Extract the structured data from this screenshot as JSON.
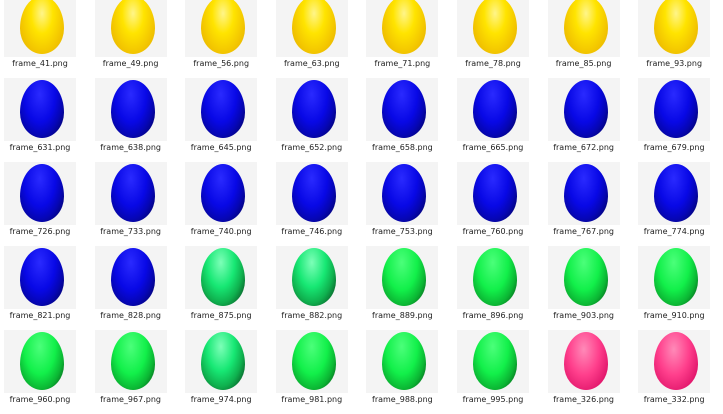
{
  "files": [
    {
      "name": "frame_41.png",
      "color": "yellow"
    },
    {
      "name": "frame_49.png",
      "color": "yellow"
    },
    {
      "name": "frame_56.png",
      "color": "yellow"
    },
    {
      "name": "frame_63.png",
      "color": "yellow"
    },
    {
      "name": "frame_71.png",
      "color": "yellow"
    },
    {
      "name": "frame_78.png",
      "color": "yellow"
    },
    {
      "name": "frame_85.png",
      "color": "yellow"
    },
    {
      "name": "frame_93.png",
      "color": "yellow"
    },
    {
      "name": "frame_631.png",
      "color": "blue"
    },
    {
      "name": "frame_638.png",
      "color": "blue"
    },
    {
      "name": "frame_645.png",
      "color": "blue"
    },
    {
      "name": "frame_652.png",
      "color": "blue"
    },
    {
      "name": "frame_658.png",
      "color": "blue"
    },
    {
      "name": "frame_665.png",
      "color": "blue"
    },
    {
      "name": "frame_672.png",
      "color": "blue"
    },
    {
      "name": "frame_679.png",
      "color": "blue"
    },
    {
      "name": "frame_726.png",
      "color": "blue"
    },
    {
      "name": "frame_733.png",
      "color": "blue"
    },
    {
      "name": "frame_740.png",
      "color": "blue"
    },
    {
      "name": "frame_746.png",
      "color": "blue"
    },
    {
      "name": "frame_753.png",
      "color": "blue"
    },
    {
      "name": "frame_760.png",
      "color": "blue"
    },
    {
      "name": "frame_767.png",
      "color": "blue"
    },
    {
      "name": "frame_774.png",
      "color": "blue"
    },
    {
      "name": "frame_821.png",
      "color": "blue"
    },
    {
      "name": "frame_828.png",
      "color": "blue"
    },
    {
      "name": "frame_875.png",
      "color": "green-dark"
    },
    {
      "name": "frame_882.png",
      "color": "green-dark"
    },
    {
      "name": "frame_889.png",
      "color": "green"
    },
    {
      "name": "frame_896.png",
      "color": "green"
    },
    {
      "name": "frame_903.png",
      "color": "green"
    },
    {
      "name": "frame_910.png",
      "color": "green"
    },
    {
      "name": "frame_960.png",
      "color": "green"
    },
    {
      "name": "frame_967.png",
      "color": "green"
    },
    {
      "name": "frame_974.png",
      "color": "green-dark"
    },
    {
      "name": "frame_981.png",
      "color": "green"
    },
    {
      "name": "frame_988.png",
      "color": "green"
    },
    {
      "name": "frame_995.png",
      "color": "green"
    },
    {
      "name": "frame_326.png",
      "color": "pink"
    },
    {
      "name": "frame_332.png",
      "color": "pink"
    }
  ]
}
